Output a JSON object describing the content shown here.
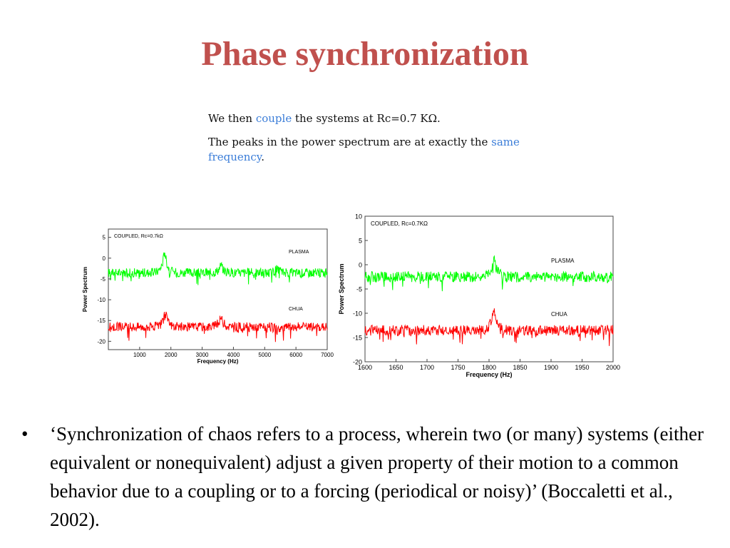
{
  "slide": {
    "title": "Phase synchronization"
  },
  "intro": {
    "p1_before": "We then ",
    "p1_highlight": "couple",
    "p1_after": " the systems at Rc=0.7 KΩ.",
    "p2_before": "The peaks in the power spectrum are at exactly the ",
    "p2_highlight": "same frequency",
    "p2_after": "."
  },
  "colors": {
    "title": "#c0504d",
    "highlight": "#3b7dd8",
    "plasma": "#00ff00",
    "chua": "#ff0000"
  },
  "chart_data": [
    {
      "type": "line",
      "title": "COUPLED, Rc=0.7kΩ",
      "xlabel": "Frequency (Hz)",
      "ylabel": "Power Spectrum",
      "xlim": [
        0,
        7000
      ],
      "ylim": [
        -22,
        7
      ],
      "xticks": [
        1000,
        2000,
        3000,
        4000,
        5000,
        6000,
        7000
      ],
      "yticks": [
        5,
        0,
        -5,
        -10,
        -15,
        -20
      ],
      "series": [
        {
          "name": "PLASMA",
          "color": "#00ff00",
          "baseline": -3.5,
          "peaks": [
            [
              1800,
              2.0
            ],
            [
              3600,
              -1.5
            ],
            [
              5400,
              -2.5
            ]
          ]
        },
        {
          "name": "CHUA",
          "color": "#ff0000",
          "baseline": -16.5,
          "peaks": [
            [
              1800,
              -12.0
            ],
            [
              3600,
              -14.0
            ],
            [
              5400,
              -17.5
            ]
          ]
        }
      ]
    },
    {
      "type": "line",
      "title": "COUPLED, Rc=0.7KΩ",
      "xlabel": "Frequency (Hz)",
      "ylabel": "Power Spectrum",
      "xlim": [
        1600,
        2000
      ],
      "ylim": [
        -20,
        10
      ],
      "xticks": [
        1600,
        1650,
        1700,
        1750,
        1800,
        1850,
        1900,
        1950,
        2000
      ],
      "yticks": [
        10,
        5,
        0,
        -5,
        -10,
        -15,
        -20
      ],
      "series": [
        {
          "name": "PLASMA",
          "color": "#00ff00",
          "baseline": -2.5,
          "peaks": [
            [
              1808,
              1.5
            ]
          ]
        },
        {
          "name": "CHUA",
          "color": "#ff0000",
          "baseline": -13.5,
          "peaks": [
            [
              1808,
              -9.0
            ]
          ]
        }
      ]
    }
  ],
  "quote": {
    "bullet": "•",
    "text": "‘Synchronization of chaos refers to a process, wherein two (or many) systems (either equivalent or nonequivalent) adjust a given property of their motion to a common behavior due to a coupling or to a forcing (periodical or noisy)’ (Boccaletti et al., 2002)."
  }
}
